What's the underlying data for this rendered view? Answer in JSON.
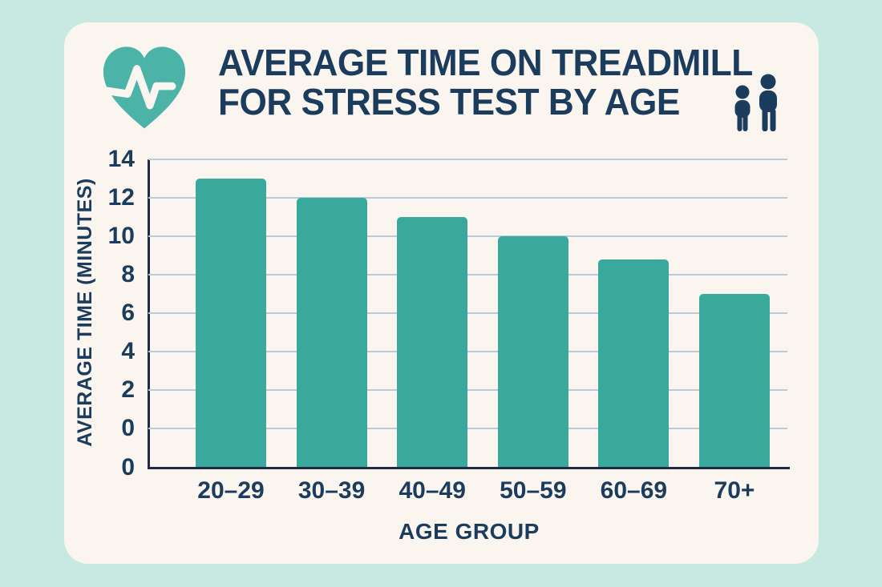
{
  "header": {
    "title_line1": "AVERAGE TIME ON TREADMILL",
    "title_line2": "FOR STRESS TEST BY AGE"
  },
  "icons": {
    "heart_pulse": "heart-pulse-icon",
    "people": "two-people-icon"
  },
  "chart_data": {
    "type": "bar",
    "title": "AVERAGE TIME ON TREADMILL FOR STRESS TEST BY AGE",
    "categories": [
      "20–29",
      "30–39",
      "40–49",
      "50–59",
      "60–69",
      "70+"
    ],
    "values": [
      13,
      12,
      11,
      10,
      8.8,
      7
    ],
    "xlabel": "AGE GROUP",
    "ylabel": "AVERAGE TIME (MINUTES)",
    "ylim": [
      0,
      14
    ],
    "yticks": [
      14,
      12,
      10,
      8,
      6,
      4,
      2,
      0
    ],
    "baseline_extra_tick": "0",
    "grid": true,
    "legend": false,
    "bar_color": "#39a99e"
  },
  "colors": {
    "page_background": "#c8e9e1",
    "card_background": "#faf6ef",
    "bar": "#39a99e",
    "heart_icon": "#4bb3a8",
    "text_navy": "#1c3c5e",
    "axis_line": "#1e2b42",
    "gridline": "#b7cbd8"
  }
}
